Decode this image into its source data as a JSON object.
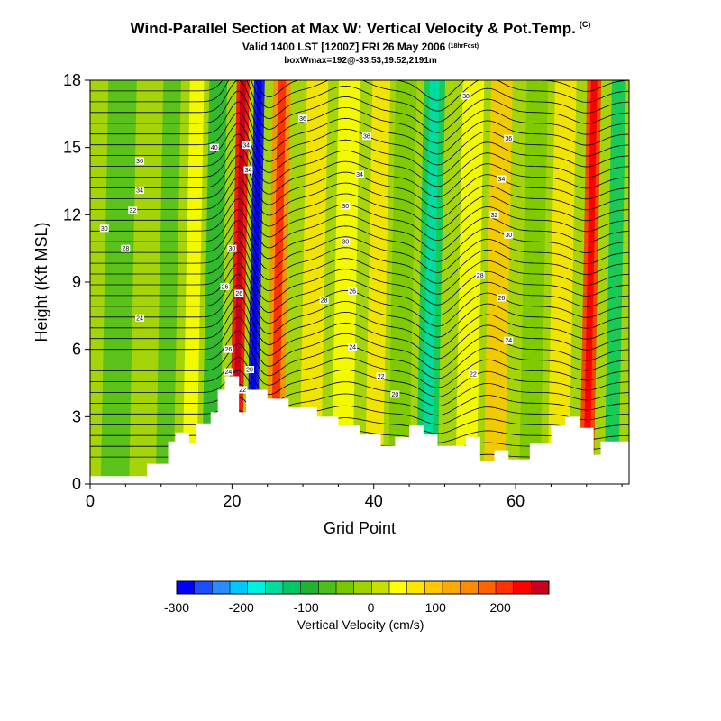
{
  "header": {
    "title": "Wind-Parallel Section at Max W: Vertical Velocity & Pot.Temp.",
    "title_mark": "(C)",
    "subtitle": "Valid 1400 LST [1200Z] FRI 26 May 2006",
    "subtitle_mark": "(18hrFcst)",
    "subsub": "boxWmax=192@-33.53,19.52,2191m"
  },
  "chart_data": {
    "type": "heatmap",
    "xlabel": "Grid Point",
    "ylabel": "Height (Kft MSL)",
    "xlim": [
      0,
      76
    ],
    "ylim": [
      0,
      18
    ],
    "xticks": [
      0,
      20,
      40,
      60
    ],
    "yticks": [
      0,
      3,
      6,
      9,
      12,
      15,
      18
    ],
    "colorbar": {
      "title": "Vertical Velocity (cm/s)",
      "tick_labels": [
        "-300",
        "-200",
        "-100",
        "0",
        "100",
        "200"
      ],
      "tick_values": [
        -300,
        -200,
        -100,
        0,
        100,
        200
      ],
      "range": [
        -300,
        275
      ],
      "colors": [
        "#0000ff",
        "#1e4cff",
        "#2a8cff",
        "#00c8ff",
        "#00f0e0",
        "#00dca0",
        "#00c864",
        "#1eb432",
        "#4cbe1e",
        "#78c800",
        "#a0d200",
        "#c8e000",
        "#ffff00",
        "#ffe600",
        "#ffc800",
        "#ffaa00",
        "#ff8c00",
        "#ff6400",
        "#ff3200",
        "#ff0000",
        "#c8001e"
      ]
    },
    "vertical_velocity_bands": [
      {
        "x": 3.5,
        "w": 4,
        "value": -60
      },
      {
        "x": 10.5,
        "w": 2.5,
        "value": -80
      },
      {
        "x": 14,
        "w": 2,
        "value": 30
      },
      {
        "x": 17,
        "w": 2.5,
        "value": -90
      },
      {
        "x": 20.5,
        "w": 1.8,
        "value": 240
      },
      {
        "x": 22.8,
        "w": 1.5,
        "value": -280
      },
      {
        "x": 26,
        "w": 2.5,
        "value": 160
      },
      {
        "x": 31,
        "w": 3,
        "value": 60
      },
      {
        "x": 35.5,
        "w": 3,
        "value": 40
      },
      {
        "x": 40,
        "w": 2.5,
        "value": 60
      },
      {
        "x": 43.5,
        "w": 3,
        "value": -40
      },
      {
        "x": 47.5,
        "w": 3,
        "value": -130
      },
      {
        "x": 53,
        "w": 3,
        "value": 40
      },
      {
        "x": 57,
        "w": 3,
        "value": 90
      },
      {
        "x": 62,
        "w": 3,
        "value": -40
      },
      {
        "x": 66,
        "w": 3,
        "value": 60
      },
      {
        "x": 70,
        "w": 2,
        "value": 200
      },
      {
        "x": 73.5,
        "w": 2,
        "value": -110
      }
    ],
    "terrain": [
      {
        "x": 0,
        "h": 0.35
      },
      {
        "x": 8,
        "h": 0.35
      },
      {
        "x": 8,
        "h": 0.9
      },
      {
        "x": 11,
        "h": 0.9
      },
      {
        "x": 11,
        "h": 1.9
      },
      {
        "x": 12,
        "h": 1.9
      },
      {
        "x": 12,
        "h": 2.3
      },
      {
        "x": 14,
        "h": 2.3
      },
      {
        "x": 14,
        "h": 1.8
      },
      {
        "x": 15,
        "h": 1.8
      },
      {
        "x": 15,
        "h": 2.7
      },
      {
        "x": 17,
        "h": 2.7
      },
      {
        "x": 17,
        "h": 3.2
      },
      {
        "x": 18,
        "h": 3.2
      },
      {
        "x": 18,
        "h": 4.2
      },
      {
        "x": 19,
        "h": 4.2
      },
      {
        "x": 19,
        "h": 4.8
      },
      {
        "x": 21,
        "h": 4.8
      },
      {
        "x": 21,
        "h": 3.2
      },
      {
        "x": 22,
        "h": 3.2
      },
      {
        "x": 22,
        "h": 4.2
      },
      {
        "x": 25,
        "h": 4.2
      },
      {
        "x": 25,
        "h": 3.8
      },
      {
        "x": 28,
        "h": 3.8
      },
      {
        "x": 28,
        "h": 3.4
      },
      {
        "x": 32,
        "h": 3.4
      },
      {
        "x": 32,
        "h": 3.0
      },
      {
        "x": 35,
        "h": 3.0
      },
      {
        "x": 35,
        "h": 2.6
      },
      {
        "x": 38,
        "h": 2.6
      },
      {
        "x": 38,
        "h": 2.2
      },
      {
        "x": 41,
        "h": 2.2
      },
      {
        "x": 41,
        "h": 1.7
      },
      {
        "x": 43,
        "h": 1.7
      },
      {
        "x": 43,
        "h": 2.1
      },
      {
        "x": 45,
        "h": 2.1
      },
      {
        "x": 45,
        "h": 2.6
      },
      {
        "x": 47,
        "h": 2.6
      },
      {
        "x": 47,
        "h": 2.2
      },
      {
        "x": 49,
        "h": 2.2
      },
      {
        "x": 49,
        "h": 1.7
      },
      {
        "x": 53,
        "h": 1.7
      },
      {
        "x": 53,
        "h": 2.1
      },
      {
        "x": 55,
        "h": 2.1
      },
      {
        "x": 55,
        "h": 1.0
      },
      {
        "x": 57,
        "h": 1.0
      },
      {
        "x": 57,
        "h": 1.5
      },
      {
        "x": 59,
        "h": 1.5
      },
      {
        "x": 59,
        "h": 1.1
      },
      {
        "x": 62,
        "h": 1.1
      },
      {
        "x": 62,
        "h": 1.8
      },
      {
        "x": 65,
        "h": 1.8
      },
      {
        "x": 65,
        "h": 2.6
      },
      {
        "x": 67,
        "h": 2.6
      },
      {
        "x": 67,
        "h": 3.0
      },
      {
        "x": 69,
        "h": 3.0
      },
      {
        "x": 69,
        "h": 2.5
      },
      {
        "x": 71,
        "h": 2.5
      },
      {
        "x": 71,
        "h": 1.3
      },
      {
        "x": 72,
        "h": 1.3
      },
      {
        "x": 72,
        "h": 1.9
      },
      {
        "x": 76,
        "h": 1.9
      }
    ],
    "theta_labels": [
      {
        "x": 7,
        "y": 14.4,
        "text": "36"
      },
      {
        "x": 7,
        "y": 13.1,
        "text": "34"
      },
      {
        "x": 6,
        "y": 12.2,
        "text": "32"
      },
      {
        "x": 2,
        "y": 11.4,
        "text": "30"
      },
      {
        "x": 5,
        "y": 10.5,
        "text": "28"
      },
      {
        "x": 7,
        "y": 7.4,
        "text": "24"
      },
      {
        "x": 17.5,
        "y": 15.0,
        "text": "40"
      },
      {
        "x": 22,
        "y": 15.1,
        "text": "34"
      },
      {
        "x": 22.3,
        "y": 14.0,
        "text": "34"
      },
      {
        "x": 20,
        "y": 10.5,
        "text": "30"
      },
      {
        "x": 19,
        "y": 8.8,
        "text": "26"
      },
      {
        "x": 21,
        "y": 8.5,
        "text": "26"
      },
      {
        "x": 19.5,
        "y": 6.0,
        "text": "26"
      },
      {
        "x": 19.5,
        "y": 5.0,
        "text": "24"
      },
      {
        "x": 21.5,
        "y": 4.2,
        "text": "22"
      },
      {
        "x": 22.5,
        "y": 5.1,
        "text": "20"
      },
      {
        "x": 30,
        "y": 16.3,
        "text": "36"
      },
      {
        "x": 39,
        "y": 15.5,
        "text": "36"
      },
      {
        "x": 38,
        "y": 13.8,
        "text": "34"
      },
      {
        "x": 36,
        "y": 12.4,
        "text": "30"
      },
      {
        "x": 36,
        "y": 10.8,
        "text": "30"
      },
      {
        "x": 33,
        "y": 8.2,
        "text": "28"
      },
      {
        "x": 37,
        "y": 8.6,
        "text": "26"
      },
      {
        "x": 37,
        "y": 6.1,
        "text": "24"
      },
      {
        "x": 41,
        "y": 4.8,
        "text": "22"
      },
      {
        "x": 43,
        "y": 4.0,
        "text": "20"
      },
      {
        "x": 53,
        "y": 17.3,
        "text": "38"
      },
      {
        "x": 59,
        "y": 15.4,
        "text": "36"
      },
      {
        "x": 58,
        "y": 13.6,
        "text": "34"
      },
      {
        "x": 57,
        "y": 12.0,
        "text": "32"
      },
      {
        "x": 59,
        "y": 11.1,
        "text": "30"
      },
      {
        "x": 55,
        "y": 9.3,
        "text": "28"
      },
      {
        "x": 58,
        "y": 8.3,
        "text": "26"
      },
      {
        "x": 59,
        "y": 6.4,
        "text": "24"
      },
      {
        "x": 54,
        "y": 4.9,
        "text": "22"
      }
    ]
  }
}
